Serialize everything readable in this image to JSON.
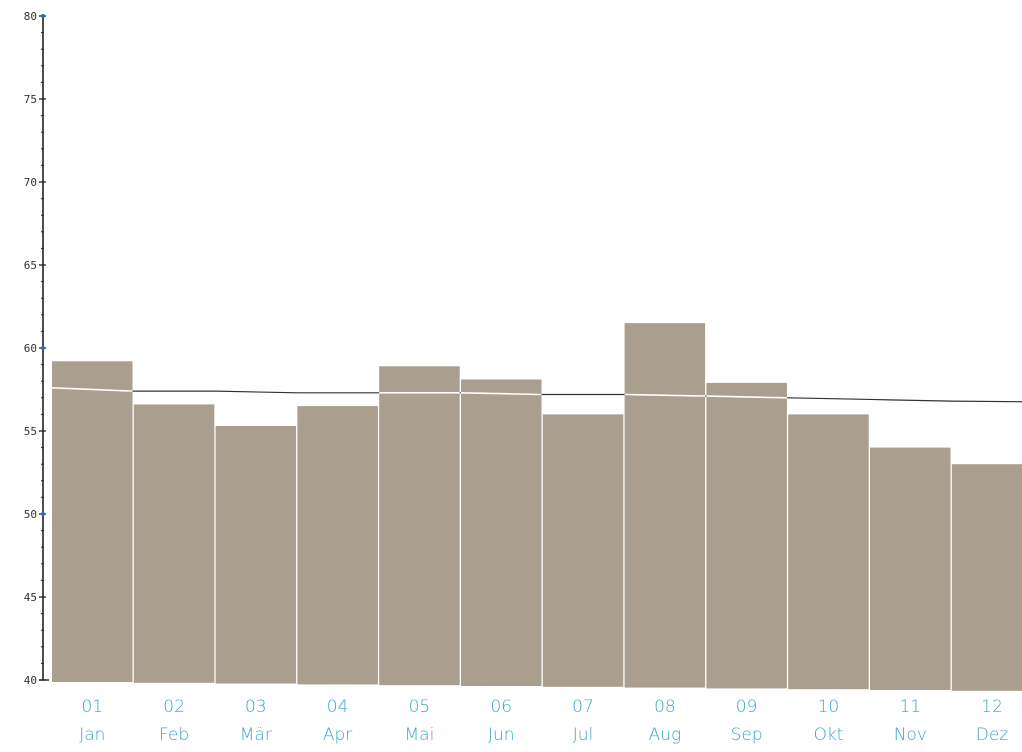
{
  "chart_data": {
    "type": "bar",
    "categories": [
      "01",
      "02",
      "03",
      "04",
      "05",
      "06",
      "07",
      "08",
      "09",
      "10",
      "11",
      "12"
    ],
    "month_labels": [
      "Jan",
      "Feb",
      "Mär",
      "Apr",
      "Mai",
      "Jun",
      "Jul",
      "Aug",
      "Sep",
      "Okt",
      "Nov",
      "Dez"
    ],
    "values": [
      59.2,
      56.6,
      55.3,
      56.5,
      58.9,
      58.1,
      56.0,
      61.5,
      57.9,
      56.0,
      54.0,
      53.0
    ],
    "trend": [
      57.6,
      57.4,
      57.4,
      57.3,
      57.3,
      57.3,
      57.2,
      57.2,
      57.1,
      57.0,
      56.9,
      56.8
    ],
    "ylim": [
      40,
      80
    ],
    "yticks": [
      40,
      45,
      50,
      55,
      60,
      65,
      70,
      75,
      80
    ],
    "title": "",
    "xlabel": "",
    "ylabel": "",
    "grid": false,
    "colors": {
      "bar": "#aa9e8f",
      "trend": "#333333",
      "label": "#3aa5c4",
      "axis": "#222222",
      "tick_marker": "#1f6fc4"
    }
  }
}
